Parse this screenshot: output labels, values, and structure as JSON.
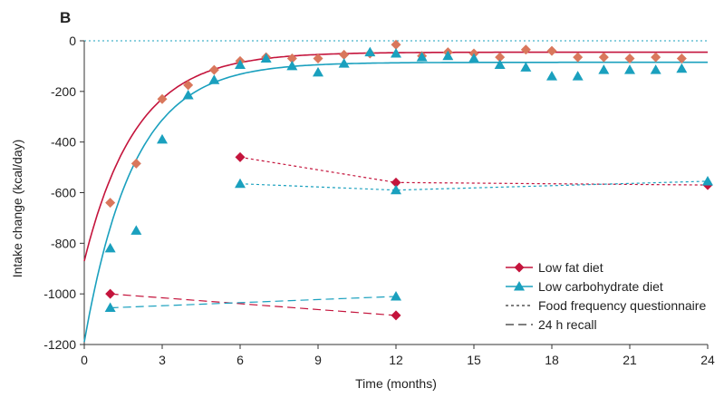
{
  "chart_data": {
    "type": "scatter",
    "panel_label": "B",
    "xlabel": "Time (months)",
    "ylabel": "Intake change (kcal/day)",
    "xlim": [
      0,
      24
    ],
    "ylim": [
      -1200,
      0
    ],
    "xticks": [
      0,
      3,
      6,
      9,
      12,
      15,
      18,
      21,
      24
    ],
    "yticks": [
      0,
      -200,
      -400,
      -600,
      -800,
      -1000,
      -1200
    ],
    "colors": {
      "low_fat": "#c4143c",
      "low_fat_points": "#d9775c",
      "low_carb": "#1aa0be",
      "zero_line": "#1aa0be",
      "axis": "#333333"
    },
    "series": [
      {
        "name": "Low fat diet",
        "kind": "monthly",
        "marker": "diamond",
        "x": [
          1,
          2,
          3,
          4,
          5,
          6,
          7,
          8,
          9,
          10,
          11,
          12,
          13,
          14,
          15,
          16,
          17,
          18,
          19,
          20,
          21,
          22,
          23
        ],
        "values": [
          -640,
          -485,
          -230,
          -175,
          -115,
          -80,
          -65,
          -70,
          -70,
          -55,
          -50,
          -15,
          -60,
          -45,
          -50,
          -65,
          -35,
          -40,
          -65,
          -65,
          -70,
          -65,
          -70
        ]
      },
      {
        "name": "Low carbohydrate diet",
        "kind": "monthly",
        "marker": "triangle",
        "x": [
          1,
          2,
          3,
          4,
          5,
          6,
          7,
          8,
          9,
          10,
          11,
          12,
          13,
          14,
          15,
          16,
          17,
          18,
          19,
          20,
          21,
          22,
          23
        ],
        "values": [
          -820,
          -750,
          -390,
          -215,
          -155,
          -95,
          -70,
          -100,
          -125,
          -90,
          -45,
          -50,
          -65,
          -60,
          -70,
          -95,
          -105,
          -140,
          -140,
          -115,
          -115,
          -115,
          -110
        ]
      },
      {
        "name": "Low fat diet (FFQ)",
        "kind": "ffq",
        "marker": "diamond",
        "x": [
          6,
          12,
          24
        ],
        "values": [
          -460,
          -560,
          -570
        ]
      },
      {
        "name": "Low carbohydrate diet (FFQ)",
        "kind": "ffq",
        "marker": "triangle",
        "x": [
          6,
          12,
          24
        ],
        "values": [
          -565,
          -590,
          -555
        ]
      },
      {
        "name": "Low fat diet (24 h recall)",
        "kind": "recall",
        "marker": "diamond",
        "x": [
          1,
          12
        ],
        "values": [
          -1000,
          -1085
        ]
      },
      {
        "name": "Low carbohydrate diet (24 h recall)",
        "kind": "recall",
        "marker": "triangle",
        "x": [
          1,
          12
        ],
        "values": [
          -1055,
          -1010
        ]
      }
    ],
    "fits": [
      {
        "name": "Low fat diet fit",
        "start": -870,
        "plateau": -45,
        "tau": 2.0
      },
      {
        "name": "Low carbohydrate diet fit",
        "start": -1190,
        "plateau": -85,
        "tau": 1.9
      }
    ],
    "legend": {
      "position": "lower-right",
      "items": [
        {
          "label": "Low fat diet",
          "type": "marker-line",
          "marker": "diamond",
          "series": "low_fat"
        },
        {
          "label": "Low carbohydrate diet",
          "type": "marker-line",
          "marker": "triangle",
          "series": "low_carb"
        },
        {
          "label": "Food frequency questionnaire",
          "type": "dotted"
        },
        {
          "label": "24 h recall",
          "type": "dashed"
        }
      ]
    }
  }
}
